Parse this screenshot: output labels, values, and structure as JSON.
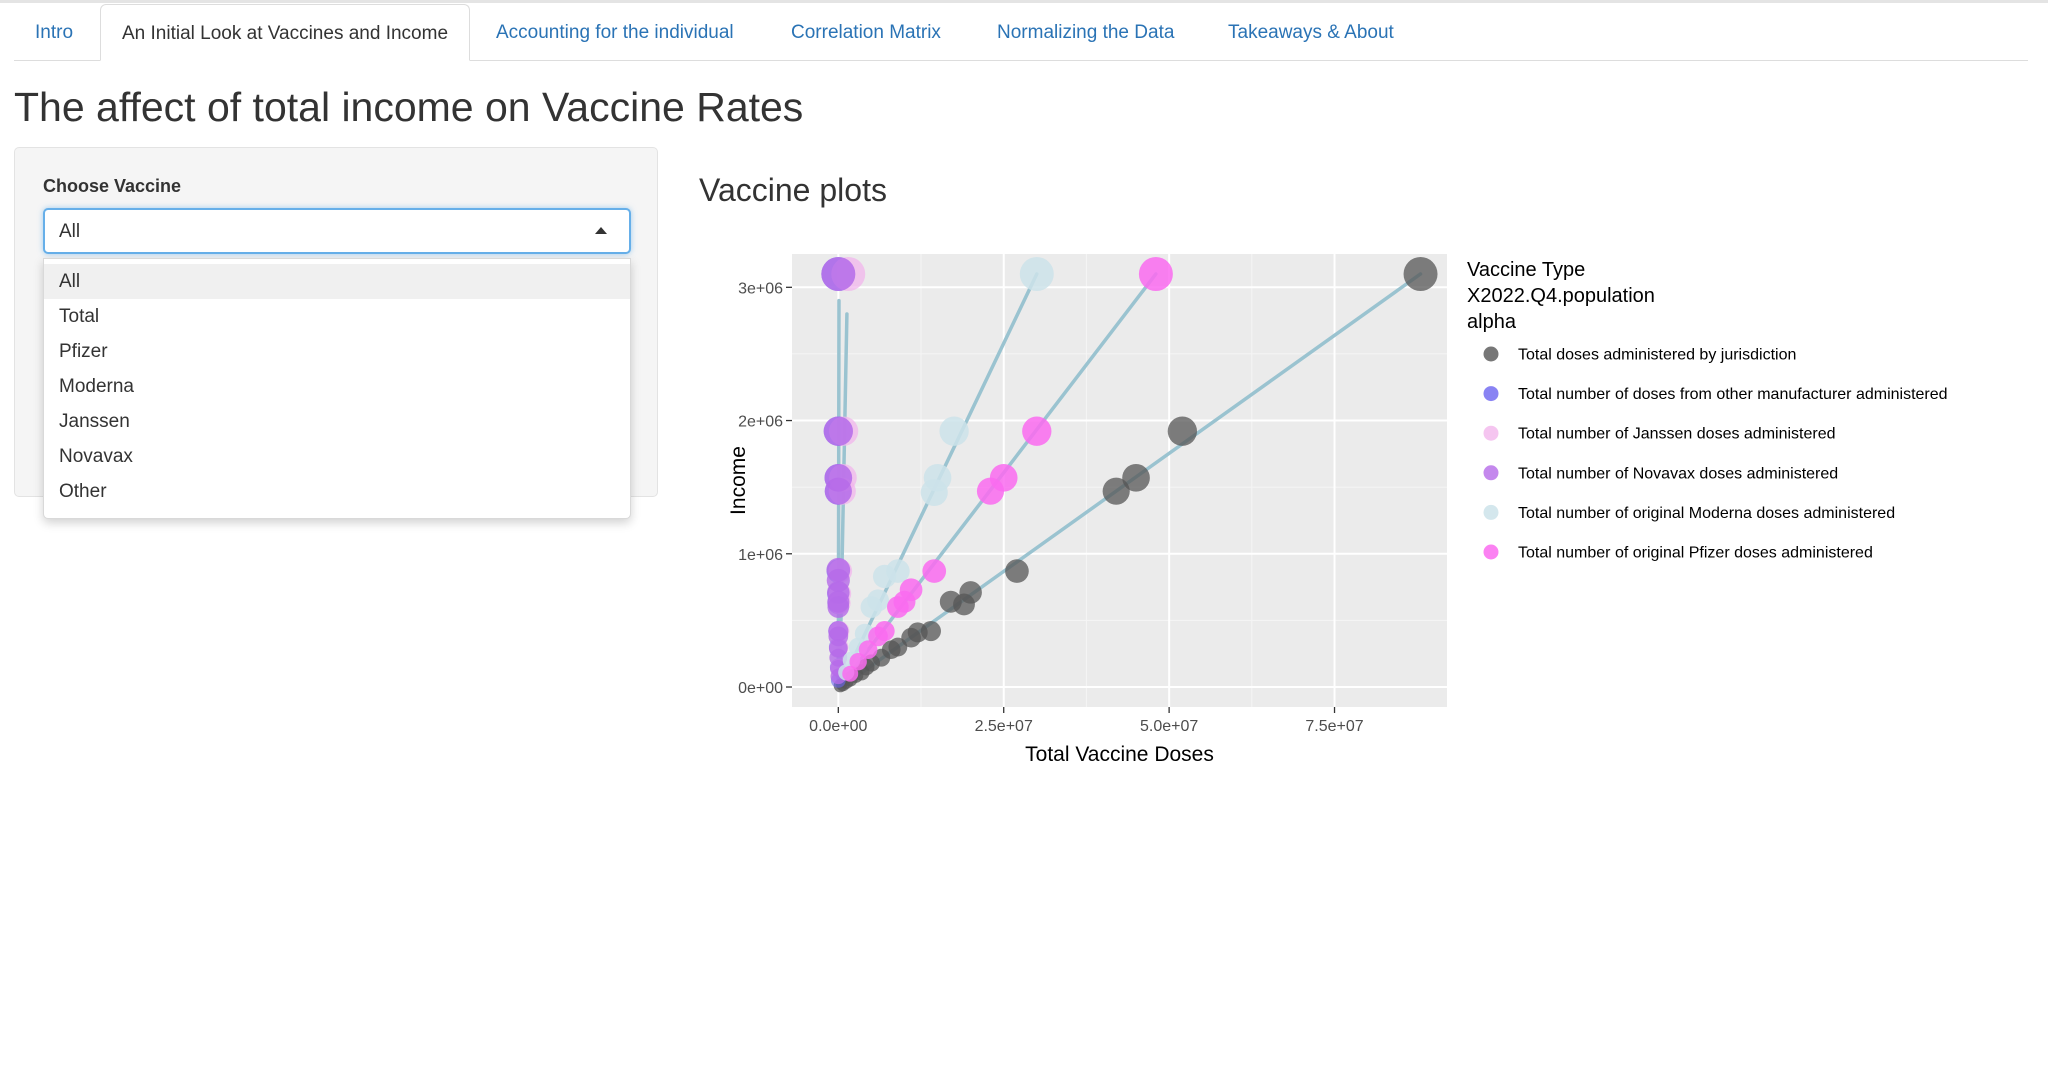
{
  "tabs": [
    {
      "label": "Intro",
      "active": false
    },
    {
      "label": "An Initial Look at Vaccines and Income",
      "active": true
    },
    {
      "label": "Accounting for the individual",
      "active": false
    },
    {
      "label": "Correlation Matrix",
      "active": false
    },
    {
      "label": "Normalizing the Data",
      "active": false
    },
    {
      "label": "Takeaways & About",
      "active": false
    }
  ],
  "page_title": "The affect of total income on Vaccine Rates",
  "sidebar": {
    "label": "Choose Vaccine",
    "selected": "All",
    "options": [
      "All",
      "Total",
      "Pfizer",
      "Moderna",
      "Janssen",
      "Novavax",
      "Other"
    ]
  },
  "main": {
    "heading": "Vaccine plots"
  },
  "colors": {
    "tab_link": "#2a73b5",
    "panel_bg": "#ebebeb",
    "trend_line": "#9ac3d0",
    "total": "#555555",
    "other": "#6b64f0",
    "janssen": "#f2b6ec",
    "novavax": "#b56ae8",
    "moderna": "#cde3ea",
    "pfizer": "#fa6bf0"
  },
  "chart_data": {
    "type": "scatter",
    "title": "",
    "xlabel": "Total Vaccine Doses",
    "ylabel": "Income",
    "xlim": [
      -7000000,
      92000000
    ],
    "ylim": [
      -150000,
      3250000
    ],
    "x_ticks": [
      {
        "value": 0,
        "label": "0.0e+00"
      },
      {
        "value": 25000000,
        "label": "2.5e+07"
      },
      {
        "value": 50000000,
        "label": "5.0e+07"
      },
      {
        "value": 75000000,
        "label": "7.5e+07"
      }
    ],
    "y_ticks": [
      {
        "value": 0,
        "label": "0e+00"
      },
      {
        "value": 1000000,
        "label": "1e+06"
      },
      {
        "value": 2000000,
        "label": "2e+06"
      },
      {
        "value": 3000000,
        "label": "3e+06"
      }
    ],
    "grid": true,
    "legend_position": "right",
    "legend_titles": [
      "Vaccine Type",
      "X2022.Q4.population",
      "alpha"
    ],
    "series": [
      {
        "name": "Total doses administered by jurisdiction",
        "color": "#555555",
        "opacity": 0.75,
        "points": [
          [
            88000000,
            3100000
          ],
          [
            52000000,
            1920000
          ],
          [
            45000000,
            1570000
          ],
          [
            42000000,
            1470000
          ],
          [
            27000000,
            870000
          ],
          [
            20000000,
            710000
          ],
          [
            19000000,
            620000
          ],
          [
            17000000,
            640000
          ],
          [
            14000000,
            420000
          ],
          [
            12000000,
            410000
          ],
          [
            11000000,
            370000
          ],
          [
            9000000,
            300000
          ],
          [
            8000000,
            280000
          ],
          [
            6500000,
            220000
          ],
          [
            5000000,
            180000
          ],
          [
            4200000,
            150000
          ],
          [
            3500000,
            110000
          ],
          [
            2600000,
            90000
          ],
          [
            1800000,
            60000
          ],
          [
            1200000,
            40000
          ],
          [
            700000,
            20000
          ],
          [
            300000,
            10000
          ]
        ],
        "trend": [
          [
            500000,
            0
          ],
          [
            88000000,
            3100000
          ]
        ]
      },
      {
        "name": "Total number of doses from other manufacturer administered",
        "color": "#6b64f0",
        "opacity": 0.6,
        "points": [
          [
            0,
            3100000
          ],
          [
            0,
            1920000
          ],
          [
            0,
            1570000
          ],
          [
            0,
            1470000
          ],
          [
            0,
            870000
          ],
          [
            0,
            700000
          ],
          [
            0,
            630000
          ],
          [
            0,
            420000
          ],
          [
            0,
            300000
          ],
          [
            0,
            150000
          ],
          [
            0,
            50000
          ]
        ],
        "trend": []
      },
      {
        "name": "Total number of Janssen doses administered",
        "color": "#f2b6ec",
        "opacity": 0.75,
        "points": [
          [
            1500000,
            3100000
          ],
          [
            800000,
            1920000
          ],
          [
            700000,
            1570000
          ],
          [
            600000,
            1470000
          ],
          [
            300000,
            870000
          ],
          [
            250000,
            700000
          ],
          [
            200000,
            630000
          ],
          [
            150000,
            420000
          ],
          [
            100000,
            300000
          ],
          [
            60000,
            150000
          ]
        ],
        "trend": [
          [
            200000,
            0
          ],
          [
            1300000,
            2800000
          ]
        ]
      },
      {
        "name": "Total number of Novavax doses administered",
        "color": "#b56ae8",
        "opacity": 0.8,
        "points": [
          [
            0,
            3100000
          ],
          [
            0,
            1920000
          ],
          [
            0,
            1570000
          ],
          [
            0,
            1470000
          ],
          [
            0,
            880000
          ],
          [
            0,
            800000
          ],
          [
            0,
            710000
          ],
          [
            0,
            640000
          ],
          [
            0,
            600000
          ],
          [
            0,
            420000
          ],
          [
            0,
            380000
          ],
          [
            0,
            290000
          ],
          [
            0,
            220000
          ],
          [
            0,
            140000
          ],
          [
            0,
            80000
          ]
        ],
        "trend": [
          [
            0,
            0
          ],
          [
            100000,
            2900000
          ]
        ]
      },
      {
        "name": "Total number of original Moderna doses administered",
        "color": "#cde3ea",
        "opacity": 0.85,
        "points": [
          [
            30000000,
            3100000
          ],
          [
            17500000,
            1920000
          ],
          [
            15000000,
            1570000
          ],
          [
            14500000,
            1460000
          ],
          [
            9000000,
            870000
          ],
          [
            7000000,
            830000
          ],
          [
            6000000,
            650000
          ],
          [
            5000000,
            600000
          ],
          [
            4000000,
            400000
          ],
          [
            3000000,
            300000
          ],
          [
            2000000,
            200000
          ],
          [
            1200000,
            110000
          ]
        ],
        "trend": [
          [
            200000,
            0
          ],
          [
            30000000,
            3100000
          ]
        ]
      },
      {
        "name": "Total number of original Pfizer doses administered",
        "color": "#fa6bf0",
        "opacity": 0.85,
        "points": [
          [
            48000000,
            3100000
          ],
          [
            30000000,
            1920000
          ],
          [
            25000000,
            1570000
          ],
          [
            23000000,
            1470000
          ],
          [
            14500000,
            870000
          ],
          [
            11000000,
            730000
          ],
          [
            10000000,
            640000
          ],
          [
            9000000,
            600000
          ],
          [
            7000000,
            420000
          ],
          [
            6000000,
            380000
          ],
          [
            4500000,
            280000
          ],
          [
            3000000,
            190000
          ],
          [
            1800000,
            100000
          ]
        ],
        "trend": [
          [
            200000,
            0
          ],
          [
            48000000,
            3100000
          ]
        ]
      }
    ],
    "size_note": "Point size varies with X2022.Q4.population"
  }
}
